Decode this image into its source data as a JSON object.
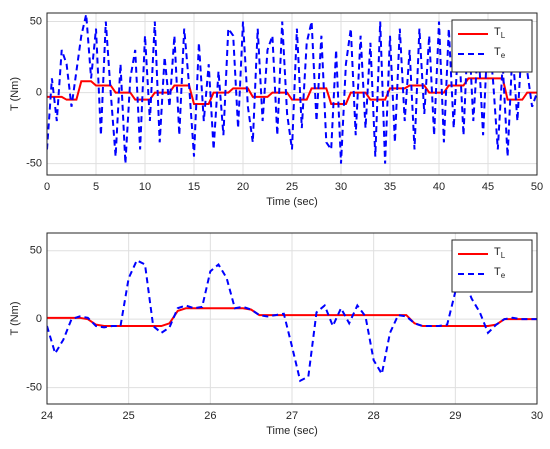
{
  "chart_data": [
    {
      "type": "line",
      "xlabel": "Time (sec)",
      "ylabel": "T (Nm)",
      "xlim": [
        0,
        50
      ],
      "xticks": [
        0,
        5,
        10,
        15,
        20,
        25,
        30,
        35,
        40,
        45,
        50
      ],
      "ylim": [
        -58,
        56
      ],
      "yticks": [
        -50,
        0,
        50
      ],
      "grid": true,
      "legend": "northeast",
      "x": [
        0,
        0.5,
        1,
        1.5,
        2,
        2.5,
        3,
        3.5,
        4,
        4.5,
        5,
        5.5,
        6,
        6.5,
        7,
        7.5,
        8,
        8.5,
        9,
        9.5,
        10,
        10.5,
        11,
        11.5,
        12,
        12.5,
        13,
        13.5,
        14,
        14.5,
        15,
        15.5,
        16,
        16.5,
        17,
        17.5,
        18,
        18.5,
        19,
        19.5,
        20,
        20.5,
        21,
        21.5,
        22,
        22.5,
        23,
        23.5,
        24,
        24.5,
        25,
        25.5,
        26,
        26.5,
        27,
        27.5,
        28,
        28.5,
        29,
        29.5,
        30,
        30.5,
        31,
        31.5,
        32,
        32.5,
        33,
        33.5,
        34,
        34.5,
        35,
        35.5,
        36,
        36.5,
        37,
        37.5,
        38,
        38.5,
        39,
        39.5,
        40,
        40.5,
        41,
        41.5,
        42,
        42.5,
        43,
        43.5,
        44,
        44.5,
        45,
        45.5,
        46,
        46.5,
        47,
        47.5,
        48,
        48.5,
        49,
        49.5,
        50
      ],
      "series": [
        {
          "name": "T_L",
          "color": "#ff0000",
          "dash": false,
          "values": [
            -3,
            -3,
            -3,
            -3,
            -5,
            -5,
            -5,
            8,
            8,
            8,
            5,
            5,
            5,
            5,
            0,
            0,
            0,
            0,
            -5,
            -5,
            -5,
            -5,
            0,
            0,
            0,
            0,
            5,
            5,
            5,
            5,
            -8,
            -8,
            -8,
            -8,
            0,
            0,
            0,
            0,
            3,
            3,
            3,
            3,
            -3,
            -3,
            -3,
            -3,
            0,
            0,
            0,
            0,
            -5,
            -5,
            -5,
            -5,
            3,
            3,
            3,
            3,
            -8,
            -8,
            -8,
            -8,
            0,
            0,
            0,
            0,
            -5,
            -5,
            -5,
            -5,
            3,
            3,
            3,
            3,
            5,
            5,
            5,
            5,
            0,
            0,
            0,
            0,
            5,
            5,
            5,
            5,
            10,
            10,
            10,
            10,
            10,
            10,
            10,
            10,
            -5,
            -5,
            -5,
            -5,
            0,
            0,
            0
          ]
        },
        {
          "name": "T_e",
          "color": "#0000ff",
          "dash": true,
          "values": [
            -40,
            10,
            -20,
            30,
            20,
            -10,
            15,
            40,
            55,
            10,
            45,
            -30,
            50,
            0,
            -45,
            20,
            -50,
            10,
            30,
            -40,
            40,
            -20,
            50,
            -35,
            25,
            -10,
            40,
            -30,
            45,
            5,
            -45,
            35,
            -20,
            20,
            -40,
            15,
            -30,
            45,
            40,
            -25,
            50,
            -10,
            -35,
            45,
            -20,
            30,
            40,
            -30,
            50,
            -15,
            -40,
            45,
            -25,
            35,
            50,
            -20,
            40,
            -35,
            -40,
            30,
            -50,
            20,
            45,
            -30,
            40,
            -25,
            35,
            -45,
            50,
            -50,
            40,
            -35,
            45,
            -20,
            30,
            -40,
            45,
            -15,
            40,
            -30,
            50,
            -35,
            45,
            -25,
            40,
            -30,
            50,
            -20,
            35,
            -30,
            45,
            10,
            -40,
            20,
            -45,
            30,
            -20,
            40,
            15,
            -10,
            0
          ]
        }
      ]
    },
    {
      "type": "line",
      "xlabel": "Time (sec)",
      "ylabel": "T (Nm)",
      "xlim": [
        24,
        30
      ],
      "xticks": [
        24,
        25,
        26,
        27,
        28,
        29,
        30
      ],
      "ylim": [
        -62,
        63
      ],
      "yticks": [
        -50,
        0,
        50
      ],
      "grid": true,
      "legend": "northeast",
      "x": [
        24,
        24.1,
        24.2,
        24.3,
        24.4,
        24.5,
        24.6,
        24.7,
        24.8,
        24.9,
        25,
        25.1,
        25.2,
        25.3,
        25.4,
        25.5,
        25.6,
        25.7,
        25.8,
        25.9,
        26,
        26.1,
        26.2,
        26.3,
        26.4,
        26.5,
        26.6,
        26.7,
        26.8,
        26.9,
        27,
        27.1,
        27.2,
        27.3,
        27.4,
        27.5,
        27.6,
        27.7,
        27.8,
        27.9,
        28,
        28.1,
        28.2,
        28.3,
        28.4,
        28.5,
        28.6,
        28.7,
        28.8,
        28.9,
        29,
        29.1,
        29.2,
        29.3,
        29.4,
        29.5,
        29.6,
        29.7,
        29.8,
        29.9,
        30
      ],
      "series": [
        {
          "name": "T_L",
          "color": "#ff0000",
          "dash": false,
          "values": [
            1,
            1,
            1,
            1,
            1,
            0,
            -4,
            -5,
            -5,
            -5,
            -5,
            -5,
            -5,
            -5,
            -5,
            -3,
            6,
            8,
            8,
            8,
            8,
            8,
            8,
            8,
            8,
            7,
            3,
            3,
            3,
            3,
            3,
            3,
            3,
            3,
            3,
            3,
            3,
            3,
            3,
            3,
            3,
            3,
            3,
            3,
            3,
            -3,
            -5,
            -5,
            -5,
            -5,
            -5,
            -5,
            -5,
            -5,
            -5,
            -4,
            0,
            0,
            0,
            0,
            0
          ]
        },
        {
          "name": "T_e",
          "color": "#0000ff",
          "dash": true,
          "values": [
            -5,
            -25,
            -15,
            0,
            2,
            1,
            -5,
            -6,
            -5,
            -5,
            30,
            43,
            40,
            -5,
            -10,
            -6,
            8,
            10,
            8,
            9,
            35,
            40,
            30,
            8,
            9,
            7,
            3,
            2,
            3,
            4,
            -20,
            -45,
            -42,
            5,
            10,
            -5,
            8,
            -3,
            10,
            2,
            -30,
            -40,
            -10,
            3,
            2,
            -3,
            -5,
            -5,
            -5,
            -4,
            20,
            30,
            15,
            5,
            -10,
            -4,
            0,
            1,
            0,
            0,
            0
          ]
        }
      ]
    }
  ]
}
